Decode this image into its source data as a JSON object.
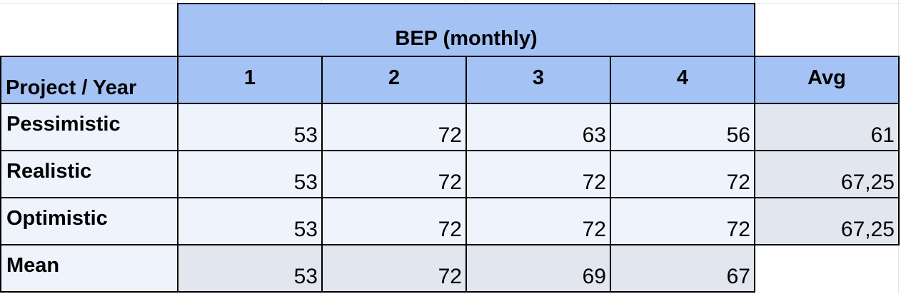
{
  "table": {
    "group_header": "BEP (monthly)",
    "corner_header": "Project / Year",
    "year_headers": [
      "1",
      "2",
      "3",
      "4"
    ],
    "avg_header": "Avg",
    "rows": [
      {
        "label": "Pessimistic",
        "values": [
          "53",
          "72",
          "63",
          "56"
        ],
        "avg": "61"
      },
      {
        "label": "Realistic",
        "values": [
          "53",
          "72",
          "72",
          "72"
        ],
        "avg": "67,25"
      },
      {
        "label": "Optimistic",
        "values": [
          "53",
          "72",
          "72",
          "72"
        ],
        "avg": "67,25"
      },
      {
        "label": "Mean",
        "values": [
          "53",
          "72",
          "69",
          "67"
        ],
        "avg": ""
      }
    ]
  },
  "colors": {
    "header_fill": "#a4c2f4",
    "body_fill": "#eff3fb",
    "shaded_fill": "#e1e6ef",
    "border": "#000000"
  }
}
